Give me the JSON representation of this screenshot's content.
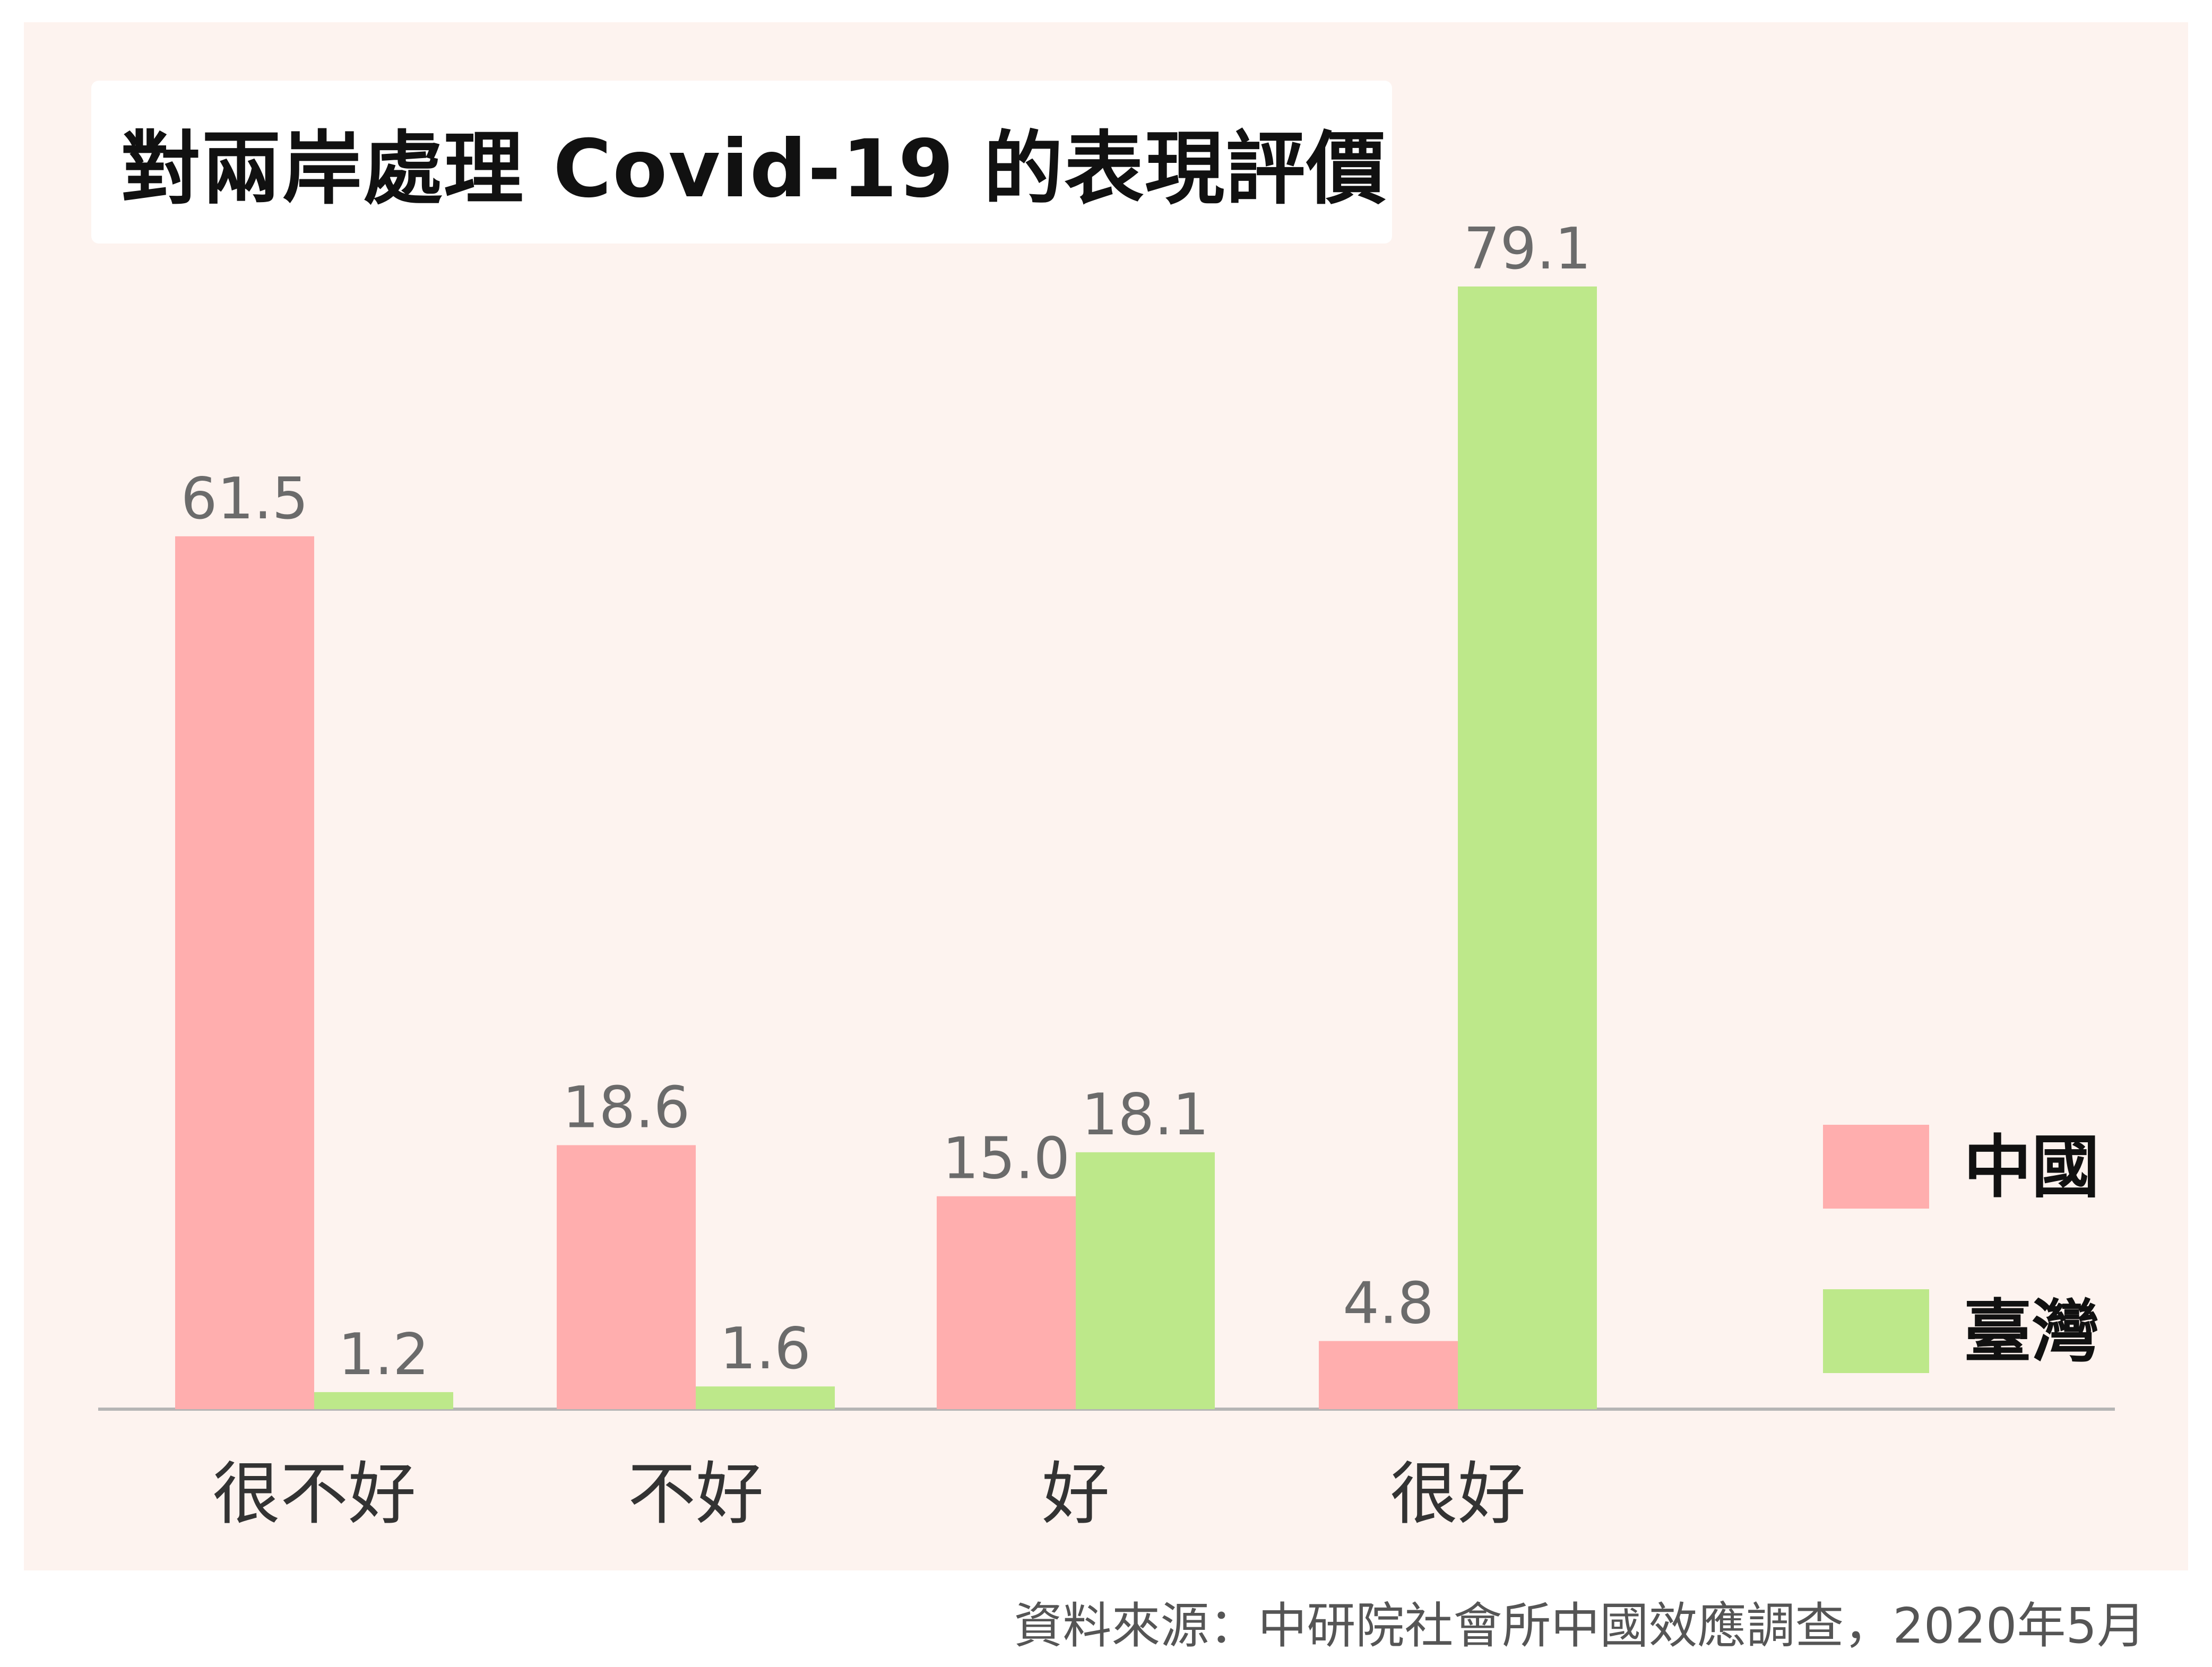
{
  "title": "對兩岸處理 Covid-19 的表現評價",
  "source": "資料來源：中研院社會所中國效應調查，2020年5月",
  "colors": {
    "panel_bg": "#fdf3ef",
    "china": "#ffaeae",
    "taiwan": "#bde88a",
    "value_label": "#6b6b6b",
    "axis": "#b5b5b5",
    "category_label": "#333333",
    "legend_text": "#111111"
  },
  "chart_data": {
    "type": "bar",
    "title": "對兩岸處理 Covid-19 的表現評價",
    "categories": [
      "很不好",
      "不好",
      "好",
      "很好"
    ],
    "series": [
      {
        "name": "中國",
        "color": "#ffaeae",
        "values": [
          61.5,
          18.6,
          15.0,
          4.8
        ],
        "labels": [
          "61.5",
          "18.6",
          "15.0",
          "4.8"
        ]
      },
      {
        "name": "臺灣",
        "color": "#bde88a",
        "values": [
          1.2,
          1.6,
          18.1,
          79.1
        ],
        "labels": [
          "1.2",
          "1.6",
          "18.1",
          "79.1"
        ]
      }
    ],
    "ylim": [
      0,
      79.1
    ],
    "grid": false,
    "legend_position": "right"
  }
}
